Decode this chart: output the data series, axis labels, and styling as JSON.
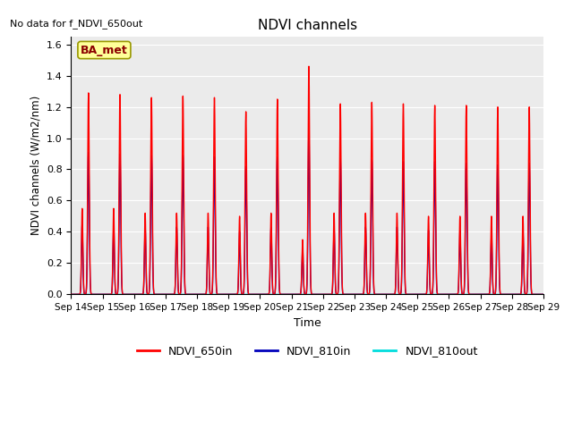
{
  "title": "NDVI channels",
  "xlabel": "Time",
  "ylabel": "NDVI channels (W/m2/nm)",
  "ylim": [
    0,
    1.65
  ],
  "yticks": [
    0.0,
    0.2,
    0.4,
    0.6,
    0.8,
    1.0,
    1.2,
    1.4,
    1.6
  ],
  "no_data_text": "No data for f_NDVI_650out",
  "ba_met_label": "BA_met",
  "colors": {
    "NDVI_650in": "#ff0000",
    "NDVI_810in": "#0000bb",
    "NDVI_810out": "#00dddd"
  },
  "legend_entries": [
    "NDVI_650in",
    "NDVI_810in",
    "NDVI_810out"
  ],
  "background_color": "#ebebeb",
  "start_day": 14,
  "end_day": 29,
  "peaks_650in": [
    1.29,
    1.28,
    1.26,
    1.27,
    1.26,
    1.17,
    1.25,
    1.46,
    1.22,
    1.23,
    1.22,
    1.21,
    1.21,
    1.2,
    1.2
  ],
  "peaks_810in": [
    0.91,
    0.9,
    0.89,
    0.89,
    0.88,
    0.82,
    0.88,
    1.04,
    0.87,
    0.86,
    0.85,
    0.85,
    0.84,
    0.83,
    0.84
  ],
  "small_peaks_650in": [
    0.55,
    0.55,
    0.52,
    0.52,
    0.52,
    0.5,
    0.52,
    0.35,
    0.52,
    0.52,
    0.52,
    0.5,
    0.5,
    0.5,
    0.5
  ],
  "small_peaks_810in": [
    0.45,
    0.45,
    0.43,
    0.43,
    0.43,
    0.4,
    0.43,
    0.3,
    0.43,
    0.43,
    0.43,
    0.41,
    0.41,
    0.4,
    0.4
  ],
  "tick_labels": [
    "Sep 14",
    "Sep 15",
    "Sep 16",
    "Sep 17",
    "Sep 18",
    "Sep 19",
    "Sep 20",
    "Sep 21",
    "Sep 22",
    "Sep 23",
    "Sep 24",
    "Sep 25",
    "Sep 26",
    "Sep 27",
    "Sep 28",
    "Sep 29"
  ]
}
